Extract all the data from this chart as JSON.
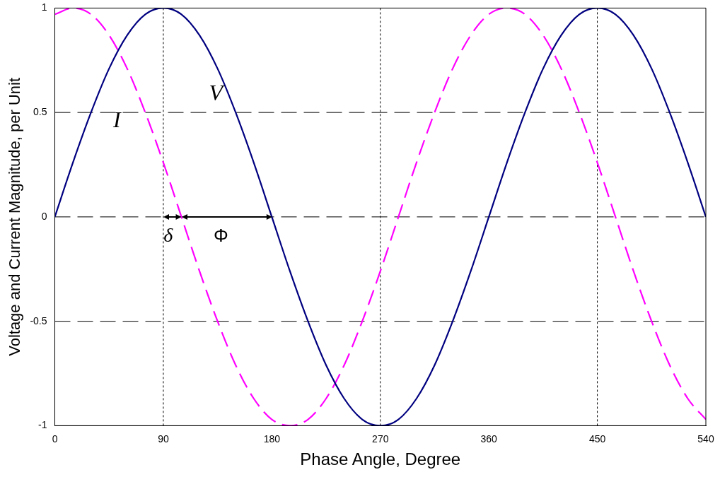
{
  "chart_data": {
    "type": "line",
    "xlabel": "Phase Angle, Degree",
    "ylabel": "Voltage and Current Magnitude, per Unit",
    "x": [
      0,
      15,
      30,
      45,
      60,
      75,
      90,
      105,
      120,
      135,
      150,
      165,
      180,
      195,
      210,
      225,
      240,
      255,
      270,
      285,
      300,
      315,
      330,
      345,
      360,
      375,
      390,
      405,
      420,
      435,
      450,
      465,
      480,
      495,
      510,
      525,
      540
    ],
    "series": [
      {
        "name": "V",
        "color": "#000080",
        "line_style": "solid",
        "values": [
          0,
          0.26,
          0.5,
          0.71,
          0.87,
          0.97,
          1,
          0.97,
          0.87,
          0.71,
          0.5,
          0.26,
          0,
          -0.26,
          -0.5,
          -0.71,
          -0.87,
          -0.97,
          -1,
          -0.97,
          -0.87,
          -0.71,
          -0.5,
          -0.26,
          0,
          0.26,
          0.5,
          0.71,
          0.87,
          0.97,
          1,
          0.97,
          0.87,
          0.71,
          0.5,
          0.26,
          0
        ]
      },
      {
        "name": "I",
        "color": "#ff00ff",
        "line_style": "dashed",
        "values": [
          0.97,
          1,
          0.97,
          0.87,
          0.71,
          0.5,
          0.26,
          0,
          -0.26,
          -0.5,
          -0.71,
          -0.87,
          -0.97,
          -1,
          -0.97,
          -0.87,
          -0.71,
          -0.5,
          -0.26,
          0,
          0.26,
          0.5,
          0.71,
          0.87,
          0.97,
          1,
          0.97,
          0.87,
          0.71,
          0.5,
          0.26,
          0,
          -0.26,
          -0.5,
          -0.71,
          -0.87,
          -0.97
        ]
      }
    ],
    "xlim": [
      0,
      540
    ],
    "xticks": [
      0,
      90,
      180,
      270,
      360,
      450,
      540
    ],
    "ylim": [
      -1,
      1
    ],
    "yticks": [
      -1,
      -0.5,
      0,
      0.5,
      1
    ],
    "grid": "y",
    "marker": "none",
    "legend": false,
    "ref_lines": [
      {
        "axis": "x",
        "value": 90,
        "line_style": "dotted"
      },
      {
        "axis": "x",
        "value": 270,
        "line_style": "dotted"
      },
      {
        "axis": "x",
        "value": 450,
        "line_style": "dotted"
      }
    ],
    "annotations": [
      "δ",
      "Φ"
    ]
  }
}
